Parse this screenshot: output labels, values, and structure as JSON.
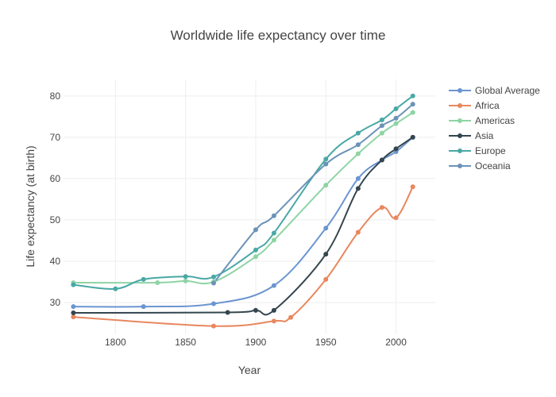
{
  "chart_data": {
    "type": "line",
    "title": "Worldwide life expectancy over time",
    "xlabel": "Year",
    "ylabel": "Life expectancy (at birth)",
    "xlim": [
      1763,
      2028
    ],
    "ylim": [
      22.5,
      84
    ],
    "xticks": [
      1800,
      1850,
      1900,
      1950,
      2000
    ],
    "yticks": [
      30,
      40,
      50,
      60,
      70,
      80
    ],
    "grid": true,
    "legend_position": "top-right",
    "series": [
      {
        "name": "Global Average",
        "color": "#6b95d1",
        "points": [
          [
            1770,
            29.0
          ],
          [
            1820,
            29.0
          ],
          [
            1870,
            29.7
          ],
          [
            1913,
            34.1
          ],
          [
            1950,
            48.0
          ],
          [
            1973,
            60.0
          ],
          [
            1990,
            64.5
          ],
          [
            2000,
            66.5
          ],
          [
            2012,
            70.0
          ]
        ]
      },
      {
        "name": "Africa",
        "color": "#e8875f",
        "points": [
          [
            1770,
            26.5
          ],
          [
            1870,
            24.3
          ],
          [
            1913,
            25.5
          ],
          [
            1925,
            26.4
          ],
          [
            1950,
            35.6
          ],
          [
            1973,
            47.0
          ],
          [
            1990,
            53.0
          ],
          [
            2000,
            50.5
          ],
          [
            2012,
            58.0
          ]
        ]
      },
      {
        "name": "Americas",
        "color": "#8ed4a4",
        "points": [
          [
            1770,
            34.8
          ],
          [
            1830,
            34.8
          ],
          [
            1850,
            35.2
          ],
          [
            1870,
            35.0
          ],
          [
            1900,
            41.1
          ],
          [
            1913,
            45.1
          ],
          [
            1950,
            58.4
          ],
          [
            1973,
            66.0
          ],
          [
            1990,
            71.0
          ],
          [
            2000,
            73.3
          ],
          [
            2012,
            76.0
          ]
        ]
      },
      {
        "name": "Asia",
        "color": "#34454f",
        "points": [
          [
            1770,
            27.5
          ],
          [
            1880,
            27.6
          ],
          [
            1900,
            28.1
          ],
          [
            1913,
            28.1
          ],
          [
            1950,
            41.7
          ],
          [
            1973,
            57.6
          ],
          [
            1990,
            64.5
          ],
          [
            2000,
            67.2
          ],
          [
            2012,
            70.0
          ]
        ]
      },
      {
        "name": "Europe",
        "color": "#49a8a5",
        "points": [
          [
            1770,
            34.3
          ],
          [
            1800,
            33.3
          ],
          [
            1820,
            35.6
          ],
          [
            1850,
            36.3
          ],
          [
            1870,
            36.2
          ],
          [
            1900,
            42.7
          ],
          [
            1913,
            46.8
          ],
          [
            1950,
            64.7
          ],
          [
            1973,
            71.0
          ],
          [
            1990,
            74.2
          ],
          [
            2000,
            76.9
          ],
          [
            2012,
            80.0
          ]
        ]
      },
      {
        "name": "Oceania",
        "color": "#6b93b8",
        "points": [
          [
            1870,
            34.7
          ],
          [
            1900,
            47.6
          ],
          [
            1913,
            51.0
          ],
          [
            1950,
            63.5
          ],
          [
            1973,
            68.2
          ],
          [
            1990,
            72.8
          ],
          [
            2000,
            74.6
          ],
          [
            2012,
            78.0
          ]
        ]
      }
    ]
  }
}
